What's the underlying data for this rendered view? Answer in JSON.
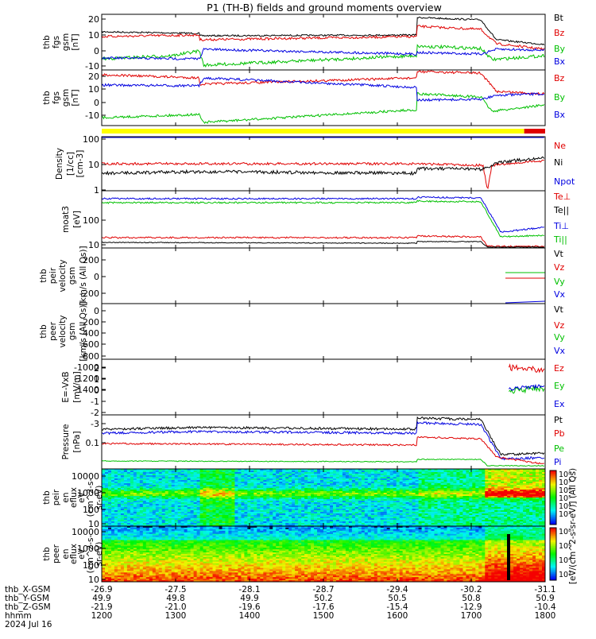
{
  "title": "P1 (TH-B) fields and ground moments overview",
  "colors": {
    "black": "#000000",
    "red": "#e00000",
    "green": "#00c000",
    "blue": "#0000e0",
    "yellow": "#ffff00",
    "barred": "#e00000"
  },
  "date_label": "2024 Jul 16",
  "x_axis": {
    "hhmm_ticks": [
      "1200",
      "1300",
      "1400",
      "1500",
      "1600",
      "1700",
      "1800"
    ],
    "rows": [
      {
        "label": "thb_X-GSM",
        "values": [
          "-26.9",
          "-27.5",
          "-28.1",
          "-28.7",
          "-29.4",
          "-30.2",
          "-31.1"
        ]
      },
      {
        "label": "thb_Y-GSM",
        "values": [
          "49.9",
          "49.8",
          "49.9",
          "50.2",
          "50.5",
          "50.8",
          "50.9"
        ]
      },
      {
        "label": "thb_Z-GSM",
        "values": [
          "-21.9",
          "-21.0",
          "-19.6",
          "-17.6",
          "-15.4",
          "-12.9",
          "-10.4"
        ]
      },
      {
        "label": "hhmm",
        "values": [
          "1200",
          "1300",
          "1400",
          "1500",
          "1600",
          "1700",
          "1800"
        ]
      }
    ]
  },
  "chart_data": [
    {
      "type": "line",
      "ylabel": [
        "thb",
        "fgs",
        "gsm",
        "[nT]"
      ],
      "yticks": [
        "20",
        "10",
        "0",
        "-10"
      ],
      "ylim": [
        -14,
        28
      ],
      "series": [
        {
          "name": "Bt",
          "color": "#000000"
        },
        {
          "name": "Bz",
          "color": "#e00000"
        },
        {
          "name": "By",
          "color": "#00c000"
        },
        {
          "name": "Bx",
          "color": "#0000e0"
        }
      ]
    },
    {
      "type": "line",
      "ylabel": [
        "thb",
        "fgs",
        "gsm",
        "[nT]"
      ],
      "yticks": [
        "20",
        "10",
        "0",
        "-10"
      ],
      "ylim": [
        -20,
        26
      ],
      "series": [
        {
          "name": "Bz",
          "color": "#e00000"
        },
        {
          "name": "By",
          "color": "#00c000"
        },
        {
          "name": "Bx",
          "color": "#0000e0"
        }
      ]
    },
    {
      "type": "line",
      "ylabel": [
        "Density",
        "[1/cc]",
        "[cm-3]"
      ],
      "yticks": [
        "100",
        "10",
        "1"
      ],
      "ylim": [
        1,
        100
      ],
      "log": true,
      "series": [
        {
          "name": "Ne",
          "color": "#e00000"
        },
        {
          "name": "Ni",
          "color": "#000000"
        },
        {
          "name": "Npot",
          "color": "#0000e0"
        }
      ]
    },
    {
      "type": "line",
      "ylabel": [
        "moat3",
        "[eV]"
      ],
      "yticks": [
        "100",
        "10"
      ],
      "ylim": [
        6,
        2000
      ],
      "log": true,
      "series": [
        {
          "name": "Te⊥",
          "color": "#e00000"
        },
        {
          "name": "Te||",
          "color": "#000000"
        },
        {
          "name": "Ti⊥",
          "color": "#0000e0"
        },
        {
          "name": "Ti||",
          "color": "#00c000"
        }
      ]
    },
    {
      "type": "line",
      "ylabel": [
        "thb",
        "peir",
        "velocity",
        "gsm",
        "[km/s (All Qs)]"
      ],
      "yticks": [
        "200",
        "0",
        "-200"
      ],
      "ylim": [
        -350,
        350
      ],
      "series": [
        {
          "name": "Vt",
          "color": "#000000"
        },
        {
          "name": "Vz",
          "color": "#e00000"
        },
        {
          "name": "Vy",
          "color": "#00c000"
        },
        {
          "name": "Vx",
          "color": "#0000e0"
        }
      ]
    },
    {
      "type": "line",
      "ylabel": [
        "thb",
        "peer",
        "velocity",
        "gsm",
        "[km/s (All Qs)]"
      ],
      "yticks": [
        "0",
        "-200",
        "-400",
        "-600",
        "-800",
        "-1000",
        "-1200",
        "-1400"
      ],
      "ylim": [
        -1400,
        0
      ],
      "series": [
        {
          "name": "Vt",
          "color": "#000000"
        },
        {
          "name": "Vz",
          "color": "#e00000"
        },
        {
          "name": "Vy",
          "color": "#00c000"
        },
        {
          "name": "Vx",
          "color": "#0000e0"
        }
      ]
    },
    {
      "type": "line",
      "ylabel": [
        "E=-VxB",
        "[mV/m]"
      ],
      "yticks": [
        "2",
        "1",
        "0",
        "-1",
        "-2",
        "-3"
      ],
      "ylim": [
        -3,
        3
      ],
      "series": [
        {
          "name": "Ez",
          "color": "#e00000"
        },
        {
          "name": "Ey",
          "color": "#00c000"
        },
        {
          "name": "Ex",
          "color": "#0000e0"
        }
      ]
    },
    {
      "type": "line",
      "ylabel": [
        "Pressure",
        "[nPa]"
      ],
      "yticks": [
        "0.1"
      ],
      "ylim": [
        0.006,
        2
      ],
      "log": true,
      "series": [
        {
          "name": "Pt",
          "color": "#000000"
        },
        {
          "name": "Pb",
          "color": "#e00000"
        },
        {
          "name": "Pe",
          "color": "#00c000"
        },
        {
          "name": "Pi",
          "color": "#0000e0"
        }
      ]
    },
    {
      "type": "heatmap",
      "ylabel": [
        "thb",
        "peir",
        "en",
        "eflux",
        "eV",
        "(cm^2-s-",
        "sr-eV)"
      ],
      "yticks": [
        "10000",
        "1000",
        "100",
        "10"
      ],
      "ylim": [
        5,
        20000
      ]
    },
    {
      "type": "heatmap",
      "ylabel": [
        "thb",
        "peer",
        "en",
        "eflux",
        "eV",
        "(cm^2-s-",
        "sr-eV)"
      ],
      "yticks": [
        "10000",
        "1000",
        "100",
        "10"
      ],
      "ylim": [
        5,
        20000
      ]
    }
  ],
  "colorbar": {
    "label": "[eV/(cm^2-s-sr-eV)] (All Qs)",
    "top_ticks": [
      "10^8",
      "10^7",
      "10^6",
      "10^5",
      "10^4",
      "10^3"
    ],
    "bottom_ticks": [
      "10^8",
      "10^6",
      "10^4",
      "10^2"
    ]
  },
  "mode_bar": {
    "segments": [
      {
        "from": 1200,
        "to": 1743,
        "color": "#ffff00"
      },
      {
        "from": 1743,
        "to": 1800,
        "color": "#e00000"
      }
    ]
  }
}
